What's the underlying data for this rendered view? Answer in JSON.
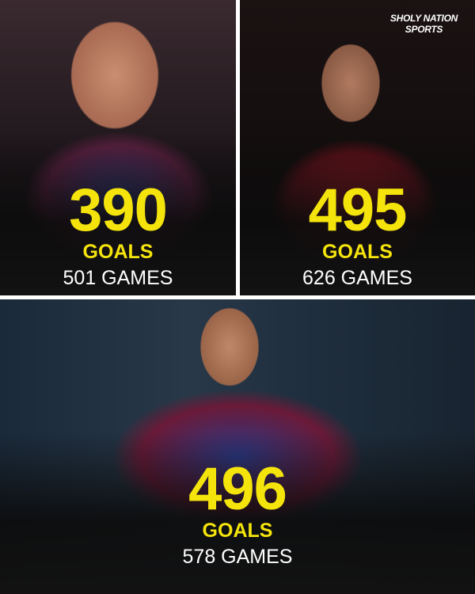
{
  "brand": {
    "line1": "SHOLY NATION",
    "line2": "SPORTS"
  },
  "players": [
    {
      "goals": "390",
      "goals_label": "GOALS",
      "games": "501 GAMES"
    },
    {
      "goals": "495",
      "goals_label": "GOALS",
      "games": "626 GAMES"
    },
    {
      "goals": "496",
      "goals_label": "GOALS",
      "games": "578 GAMES"
    }
  ],
  "colors": {
    "accent": "#f4e40c",
    "text": "#ffffff",
    "divider": "#ffffff"
  }
}
